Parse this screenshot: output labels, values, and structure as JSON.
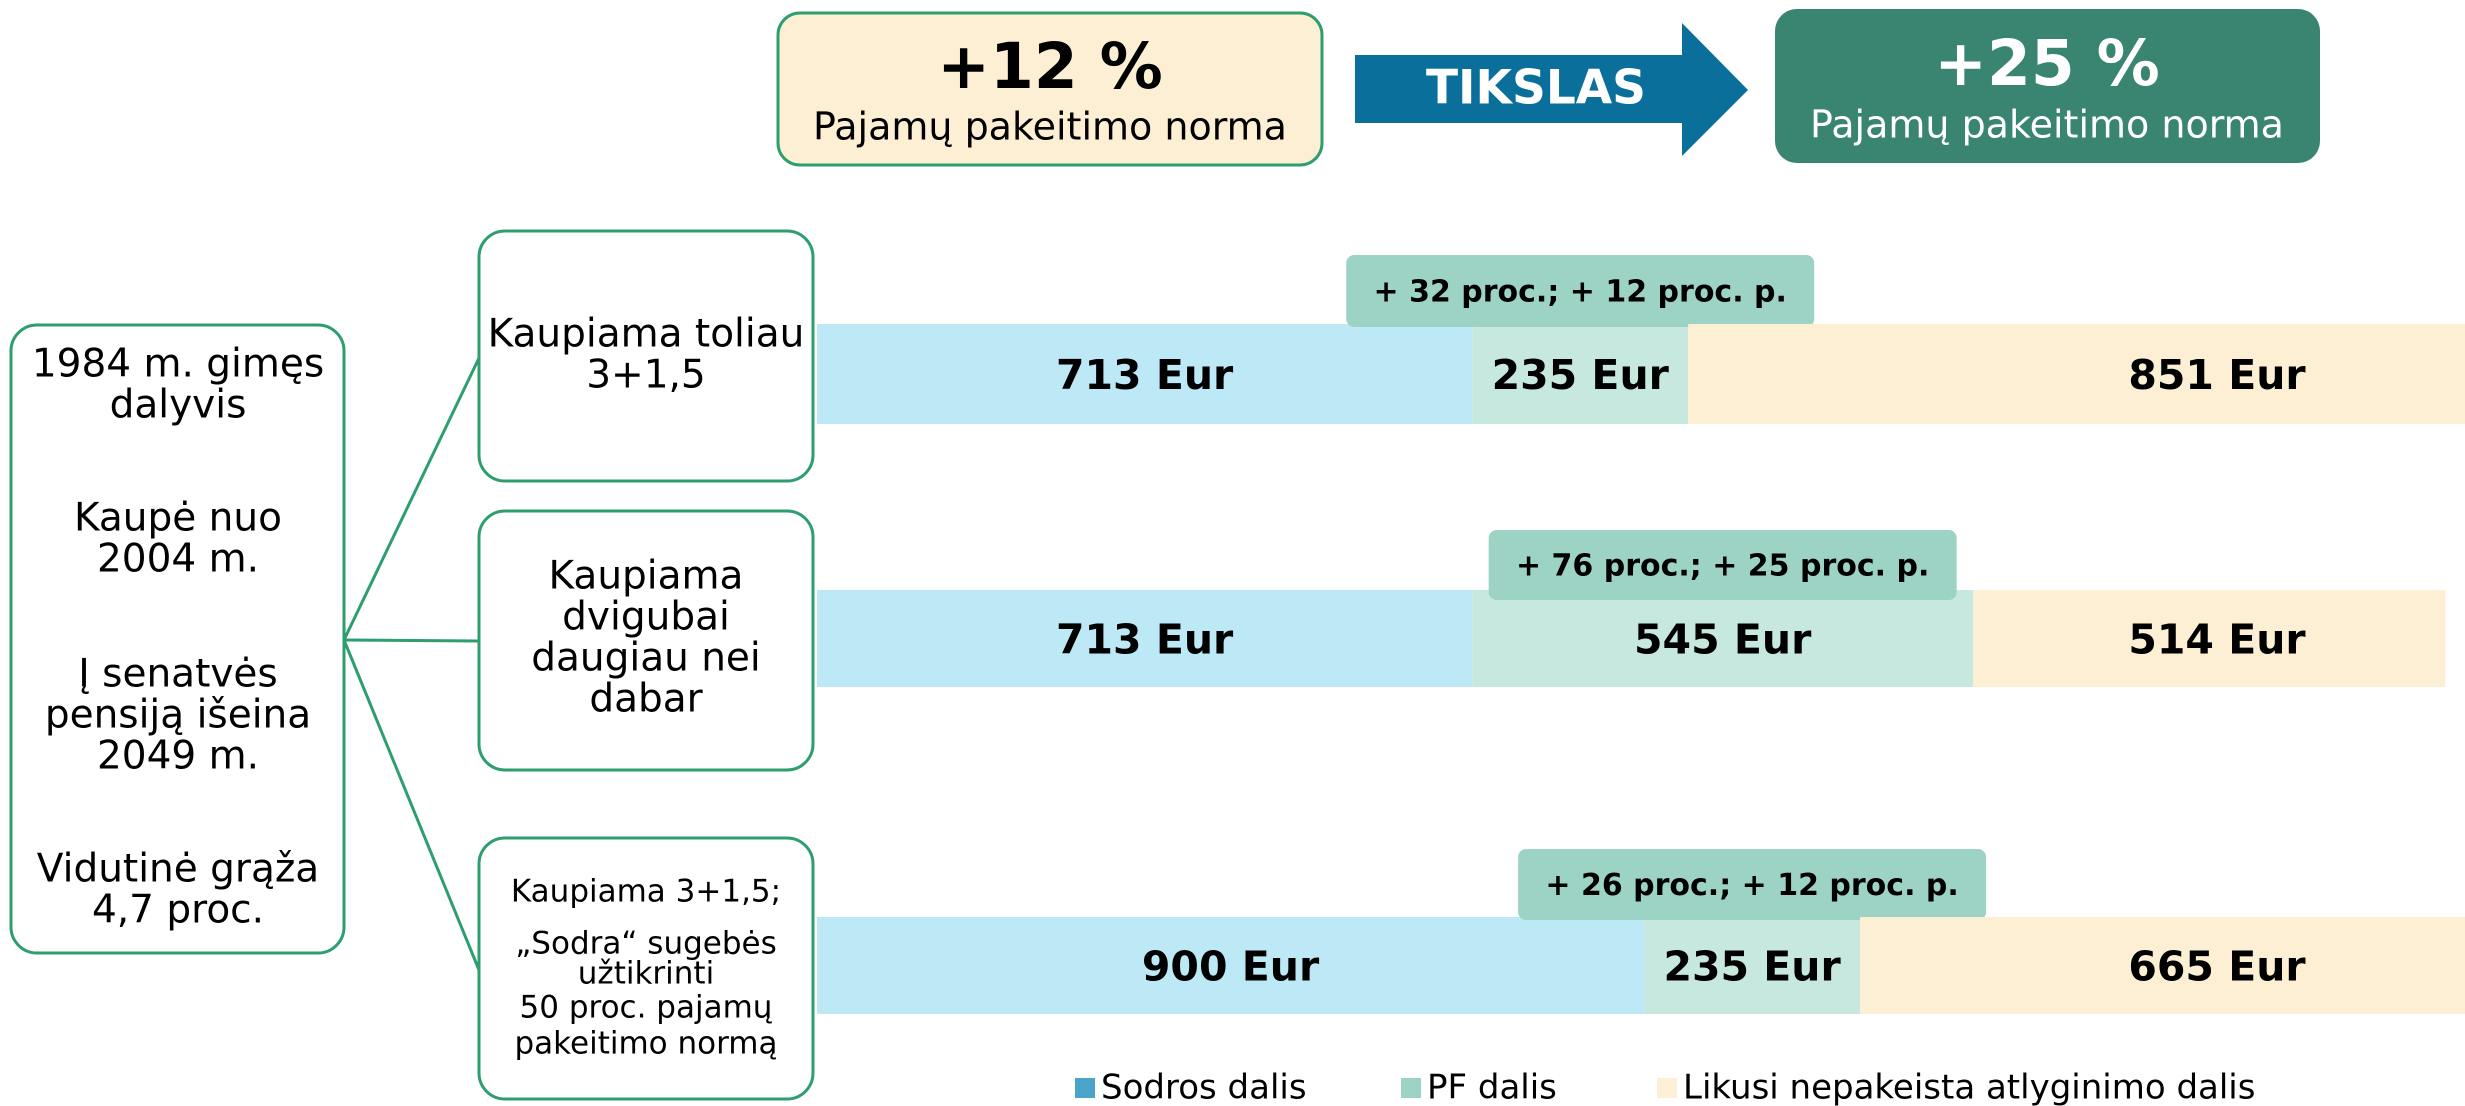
{
  "header": {
    "current": {
      "value": "+12 %",
      "label": "Pajamų pakeitimo norma"
    },
    "arrow": "TIKSLAS",
    "target": {
      "value": "+25 %",
      "label": "Pajamų pakeitimo norma"
    }
  },
  "participant": {
    "lines": [
      "1984 m. gimęs",
      "dalyvis",
      "Kaupė nuo",
      "2004 m.",
      "Į senatvės",
      "pensiją išeina",
      "2049 m.",
      "Vidutinė grąža",
      "4,7 proc."
    ]
  },
  "chart_data": {
    "type": "stacked-bar",
    "series": [
      {
        "name": "Sodros dalis",
        "color": "#4aa3c8",
        "bar_color": "#bde8f6"
      },
      {
        "name": "PF dalis",
        "color": "#9dd3c4",
        "bar_color": "#c7e8df"
      },
      {
        "name": "Likusi nepakeista atlyginimo dalis",
        "color": "#fdefd3",
        "bar_color": "#fdefd3"
      }
    ],
    "rows": [
      {
        "lines": [
          "Kaupiama toliau",
          "3+1,5"
        ],
        "annotation": "+ 32 proc.; + 12 proc. p.",
        "values": [
          713,
          235,
          851
        ],
        "value_labels": [
          "713 Eur",
          "235 Eur",
          "851 Eur"
        ]
      },
      {
        "lines": [
          "Kaupiama",
          "dvigubai",
          "daugiau nei",
          "dabar"
        ],
        "annotation": "+ 76 proc.; + 25 proc. p.",
        "values": [
          713,
          545,
          514
        ],
        "value_labels": [
          "713 Eur",
          "545 Eur",
          "514 Eur"
        ]
      },
      {
        "lines": [
          "Kaupiama 3+1,5;",
          "„Sodra“ sugebės",
          "užtikrinti",
          "50 proc. pajamų",
          "pakeitimo normą"
        ],
        "annotation": "+ 26 proc.; + 12 proc. p.",
        "values": [
          900,
          235,
          665
        ],
        "value_labels": [
          "900 Eur",
          "235 Eur",
          "665 Eur"
        ]
      }
    ]
  }
}
